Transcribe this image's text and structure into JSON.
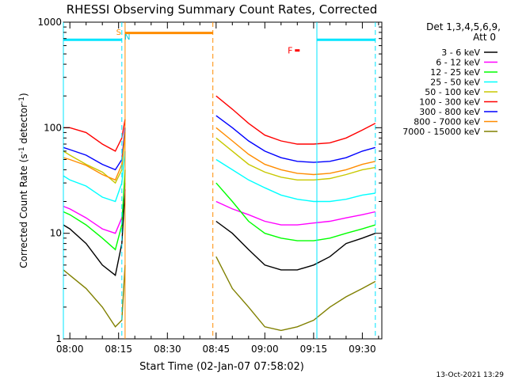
{
  "chart_data": {
    "type": "line",
    "title": "RHESSI Observing Summary Count Rates, Corrected",
    "xlabel": "Start Time (02-Jan-07 07:58:02)",
    "ylabel": "Corrected Count Rate (s",
    "ylabel_sup1": "-1",
    "ylabel_mid": " detector",
    "ylabel_sup2": "-1",
    "ylabel_end": ")",
    "y_scale": "log",
    "ylim": [
      1,
      1000
    ],
    "xlim": [
      "07:58",
      "09:36"
    ],
    "x_ticks": [
      "08:00",
      "08:15",
      "08:30",
      "08:45",
      "09:00",
      "09:15",
      "09:30"
    ],
    "y_ticks": [
      "1",
      "10",
      "100",
      "1000"
    ],
    "legend_header": [
      "Det 1,3,4,5,6,9,",
      "Att 0"
    ],
    "legend_placement": "right",
    "footer": "13-Oct-2021 13:29",
    "annotations": {
      "s_label": "S",
      "n_label": "N",
      "f_label": "F"
    },
    "series": [
      {
        "name": "3 - 6 keV",
        "color": "#000000",
        "x": [
          "07:58",
          "08:00",
          "08:05",
          "08:10",
          "08:14",
          "08:16",
          "08:17",
          "08:45",
          "08:50",
          "08:55",
          "09:00",
          "09:05",
          "09:10",
          "09:15",
          "09:20",
          "09:25",
          "09:30",
          "09:34"
        ],
        "y": [
          12,
          11,
          8,
          5,
          4,
          8,
          26,
          13,
          10,
          7,
          5,
          4.5,
          4.5,
          5,
          6,
          8,
          9,
          10
        ]
      },
      {
        "name": "6 - 12 keV",
        "color": "#ff00ff",
        "x": [
          "07:58",
          "08:00",
          "08:05",
          "08:10",
          "08:14",
          "08:16",
          "08:17",
          "08:45",
          "08:50",
          "08:55",
          "09:00",
          "09:05",
          "09:10",
          "09:15",
          "09:20",
          "09:25",
          "09:30",
          "09:34"
        ],
        "y": [
          18,
          17,
          14,
          11,
          10,
          14,
          30,
          20,
          17,
          15,
          13,
          12,
          12,
          12.5,
          13,
          14,
          15,
          16
        ]
      },
      {
        "name": "12 - 25 keV",
        "color": "#00ff00",
        "x": [
          "07:58",
          "08:00",
          "08:05",
          "08:10",
          "08:14",
          "08:16",
          "08:17",
          "08:45",
          "08:50",
          "08:55",
          "09:00",
          "09:05",
          "09:10",
          "09:15",
          "09:20",
          "09:25",
          "09:30",
          "09:34"
        ],
        "y": [
          16,
          15,
          12,
          9,
          7,
          12,
          40,
          30,
          20,
          13,
          10,
          9,
          8.5,
          8.5,
          9,
          10,
          11,
          12
        ]
      },
      {
        "name": "25 - 50 keV",
        "color": "#00ffff",
        "x": [
          "07:58",
          "08:00",
          "08:05",
          "08:10",
          "08:14",
          "08:16",
          "08:17",
          "08:45",
          "08:50",
          "08:55",
          "09:00",
          "09:05",
          "09:10",
          "09:15",
          "09:20",
          "09:25",
          "09:30",
          "09:34"
        ],
        "y": [
          35,
          32,
          28,
          22,
          20,
          30,
          60,
          50,
          40,
          32,
          27,
          23,
          21,
          20,
          20,
          21,
          23,
          24
        ]
      },
      {
        "name": "50 - 100 keV",
        "color": "#c8c800",
        "x": [
          "07:58",
          "08:00",
          "08:05",
          "08:10",
          "08:14",
          "08:16",
          "08:17",
          "08:45",
          "08:50",
          "08:55",
          "09:00",
          "09:05",
          "09:10",
          "09:15",
          "09:20",
          "09:25",
          "09:30",
          "09:34"
        ],
        "y": [
          60,
          55,
          45,
          38,
          30,
          40,
          90,
          80,
          60,
          45,
          38,
          34,
          32,
          32,
          33,
          36,
          40,
          42
        ]
      },
      {
        "name": "100 - 300 keV",
        "color": "#ff0000",
        "x": [
          "07:58",
          "08:00",
          "08:05",
          "08:10",
          "08:14",
          "08:16",
          "08:17",
          "08:45",
          "08:50",
          "08:55",
          "09:00",
          "09:05",
          "09:10",
          "09:15",
          "09:20",
          "09:25",
          "09:30",
          "09:34"
        ],
        "y": [
          100,
          100,
          90,
          70,
          60,
          80,
          120,
          200,
          150,
          110,
          85,
          75,
          70,
          70,
          72,
          80,
          95,
          110
        ]
      },
      {
        "name": "300 - 800 keV",
        "color": "#0000ff",
        "x": [
          "07:58",
          "08:00",
          "08:05",
          "08:10",
          "08:14",
          "08:16",
          "08:17",
          "08:45",
          "08:50",
          "08:55",
          "09:00",
          "09:05",
          "09:10",
          "09:15",
          "09:20",
          "09:25",
          "09:30",
          "09:34"
        ],
        "y": [
          65,
          62,
          55,
          45,
          40,
          50,
          100,
          130,
          100,
          75,
          60,
          52,
          48,
          47,
          48,
          52,
          60,
          65
        ]
      },
      {
        "name": "800 - 7000 keV",
        "color": "#ff8c00",
        "x": [
          "07:58",
          "08:00",
          "08:05",
          "08:10",
          "08:14",
          "08:16",
          "08:17",
          "08:45",
          "08:50",
          "08:55",
          "09:00",
          "09:05",
          "09:10",
          "09:15",
          "09:20",
          "09:25",
          "09:30",
          "09:34"
        ],
        "y": [
          52,
          50,
          44,
          36,
          32,
          45,
          90,
          100,
          75,
          56,
          45,
          40,
          37,
          36,
          37,
          40,
          45,
          48
        ]
      },
      {
        "name": "7000 - 15000 keV",
        "color": "#808000",
        "x": [
          "07:58",
          "08:00",
          "08:05",
          "08:10",
          "08:14",
          "08:16",
          "08:17",
          "08:45",
          "08:50",
          "08:55",
          "09:00",
          "09:05",
          "09:10",
          "09:15",
          "09:20",
          "09:25",
          "09:30",
          "09:34"
        ],
        "y": [
          4.5,
          4,
          3,
          2,
          1.3,
          1.5,
          5,
          6,
          3,
          2,
          1.3,
          1.2,
          1.3,
          1.5,
          2,
          2.5,
          3,
          3.5
        ]
      }
    ],
    "attenuator_lines": [
      {
        "color": "#00e5ff",
        "style": "solid",
        "x": "07:58"
      },
      {
        "color": "#00e5ff",
        "style": "dashed",
        "x": "08:16"
      },
      {
        "color": "#ff8c00",
        "style": "solid",
        "x": "08:17"
      },
      {
        "color": "#ff8c00",
        "style": "dashed",
        "x": "08:44"
      },
      {
        "color": "#00e5ff",
        "style": "solid",
        "x": "09:16"
      },
      {
        "color": "#00e5ff",
        "style": "dashed",
        "x": "09:34"
      }
    ],
    "attenuator_bars": [
      {
        "color": "#00e5ff",
        "x0": "07:58",
        "x1": "08:16",
        "y": 680
      },
      {
        "color": "#ff8c00",
        "x0": "08:17",
        "x1": "08:44",
        "y": 790
      },
      {
        "color": "#00e5ff",
        "x0": "09:16",
        "x1": "09:34",
        "y": 680
      }
    ],
    "flag_marks": [
      {
        "color": "#ff0000",
        "x": "09:10",
        "y": 540
      }
    ]
  }
}
